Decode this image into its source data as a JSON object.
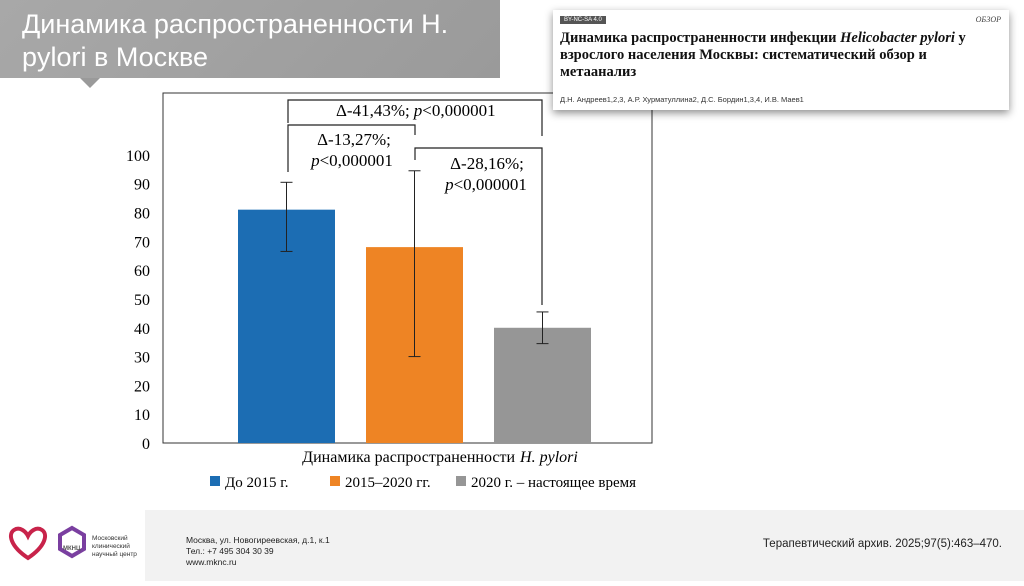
{
  "header": {
    "title": "Динамика распространенности H. pylori в Москве"
  },
  "article": {
    "license": "BY-NC-SA 4.0",
    "section": "ОБЗОР",
    "title_start": "Динамика распространенности инфекции",
    "title_italic": "Helicobacter pylori",
    "title_end": "у взрослого населения Москвы: систематический обзор и метаанализ",
    "authors": "Д.Н. Андреев1,2,3, А.Р. Хурматуллина2, Д.С. Бордин1,3,4, И.В. Маев1"
  },
  "chart_data": {
    "type": "bar",
    "x_label": {
      "text": "Динамика распространенности",
      "italic": "H. pylori"
    },
    "ylim": [
      0,
      121.5
    ],
    "yticks": [
      0,
      10,
      20,
      30,
      40,
      50,
      60,
      70,
      80,
      90,
      100
    ],
    "series": [
      {
        "name": "До 2015 г.",
        "color": "#1c6db3",
        "values": [
          81
        ],
        "error_low": [
          66.5
        ],
        "error_high": [
          90.5
        ]
      },
      {
        "name": "2015–2020 гг.",
        "color": "#ee8424",
        "values": [
          68
        ],
        "error_low": [
          30
        ],
        "error_high": [
          94.5
        ]
      },
      {
        "name": "2020 г. – настоящее время",
        "color": "#969696",
        "values": [
          40
        ],
        "error_low": [
          34.5
        ],
        "error_high": [
          45.5
        ]
      }
    ],
    "annotations": [
      {
        "label": "Δ-41,43%;",
        "italic": "p",
        "text": "<0,000001"
      },
      {
        "label": "Δ-13,27%;",
        "italic": "p",
        "text": "<0,000001"
      },
      {
        "label": "Δ-28,16%;",
        "italic": "p",
        "text": "<0,000001"
      }
    ]
  },
  "footer": {
    "logo_short": "МКНЦ",
    "logo_name": [
      "Московский",
      "клинический",
      "научный центр"
    ],
    "address": "Москва, ул. Новогиреевская, д.1, к.1",
    "phone": "Тел.: +7 495 304 30 39",
    "site": "www.mknc.ru",
    "reference": "Терапевтический архив. 2025;97(5):463–470."
  }
}
